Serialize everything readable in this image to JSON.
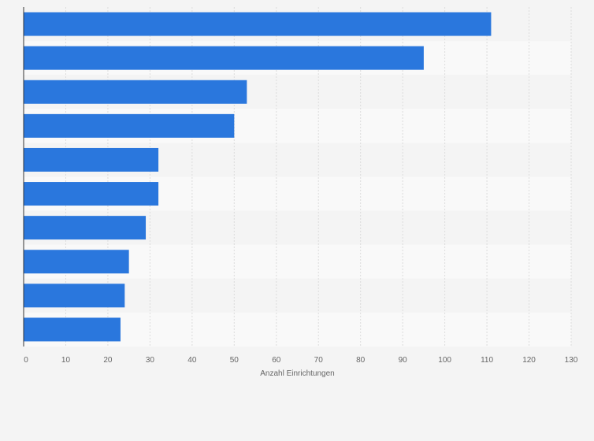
{
  "chart_data": {
    "type": "bar",
    "orientation": "horizontal",
    "categories": [
      "",
      "",
      "",
      "",
      "",
      "",
      "",
      "",
      "",
      ""
    ],
    "values": [
      111,
      95,
      53,
      50,
      32,
      32,
      29,
      25,
      24,
      23
    ],
    "title": "",
    "xlabel": "Anzahl Einrichtungen",
    "ylabel": "",
    "xlim": [
      0,
      130
    ],
    "xticks": [
      0,
      10,
      20,
      30,
      40,
      50,
      60,
      70,
      80,
      90,
      100,
      110,
      120,
      130
    ],
    "grid": true,
    "legend": "none",
    "colors": {
      "bar": "#2a77dd",
      "band_odd": "#f4f4f4",
      "band_even": "#f9f9f9",
      "grid": "#dcdcdc",
      "axis": "#333333",
      "text": "#666666"
    }
  }
}
